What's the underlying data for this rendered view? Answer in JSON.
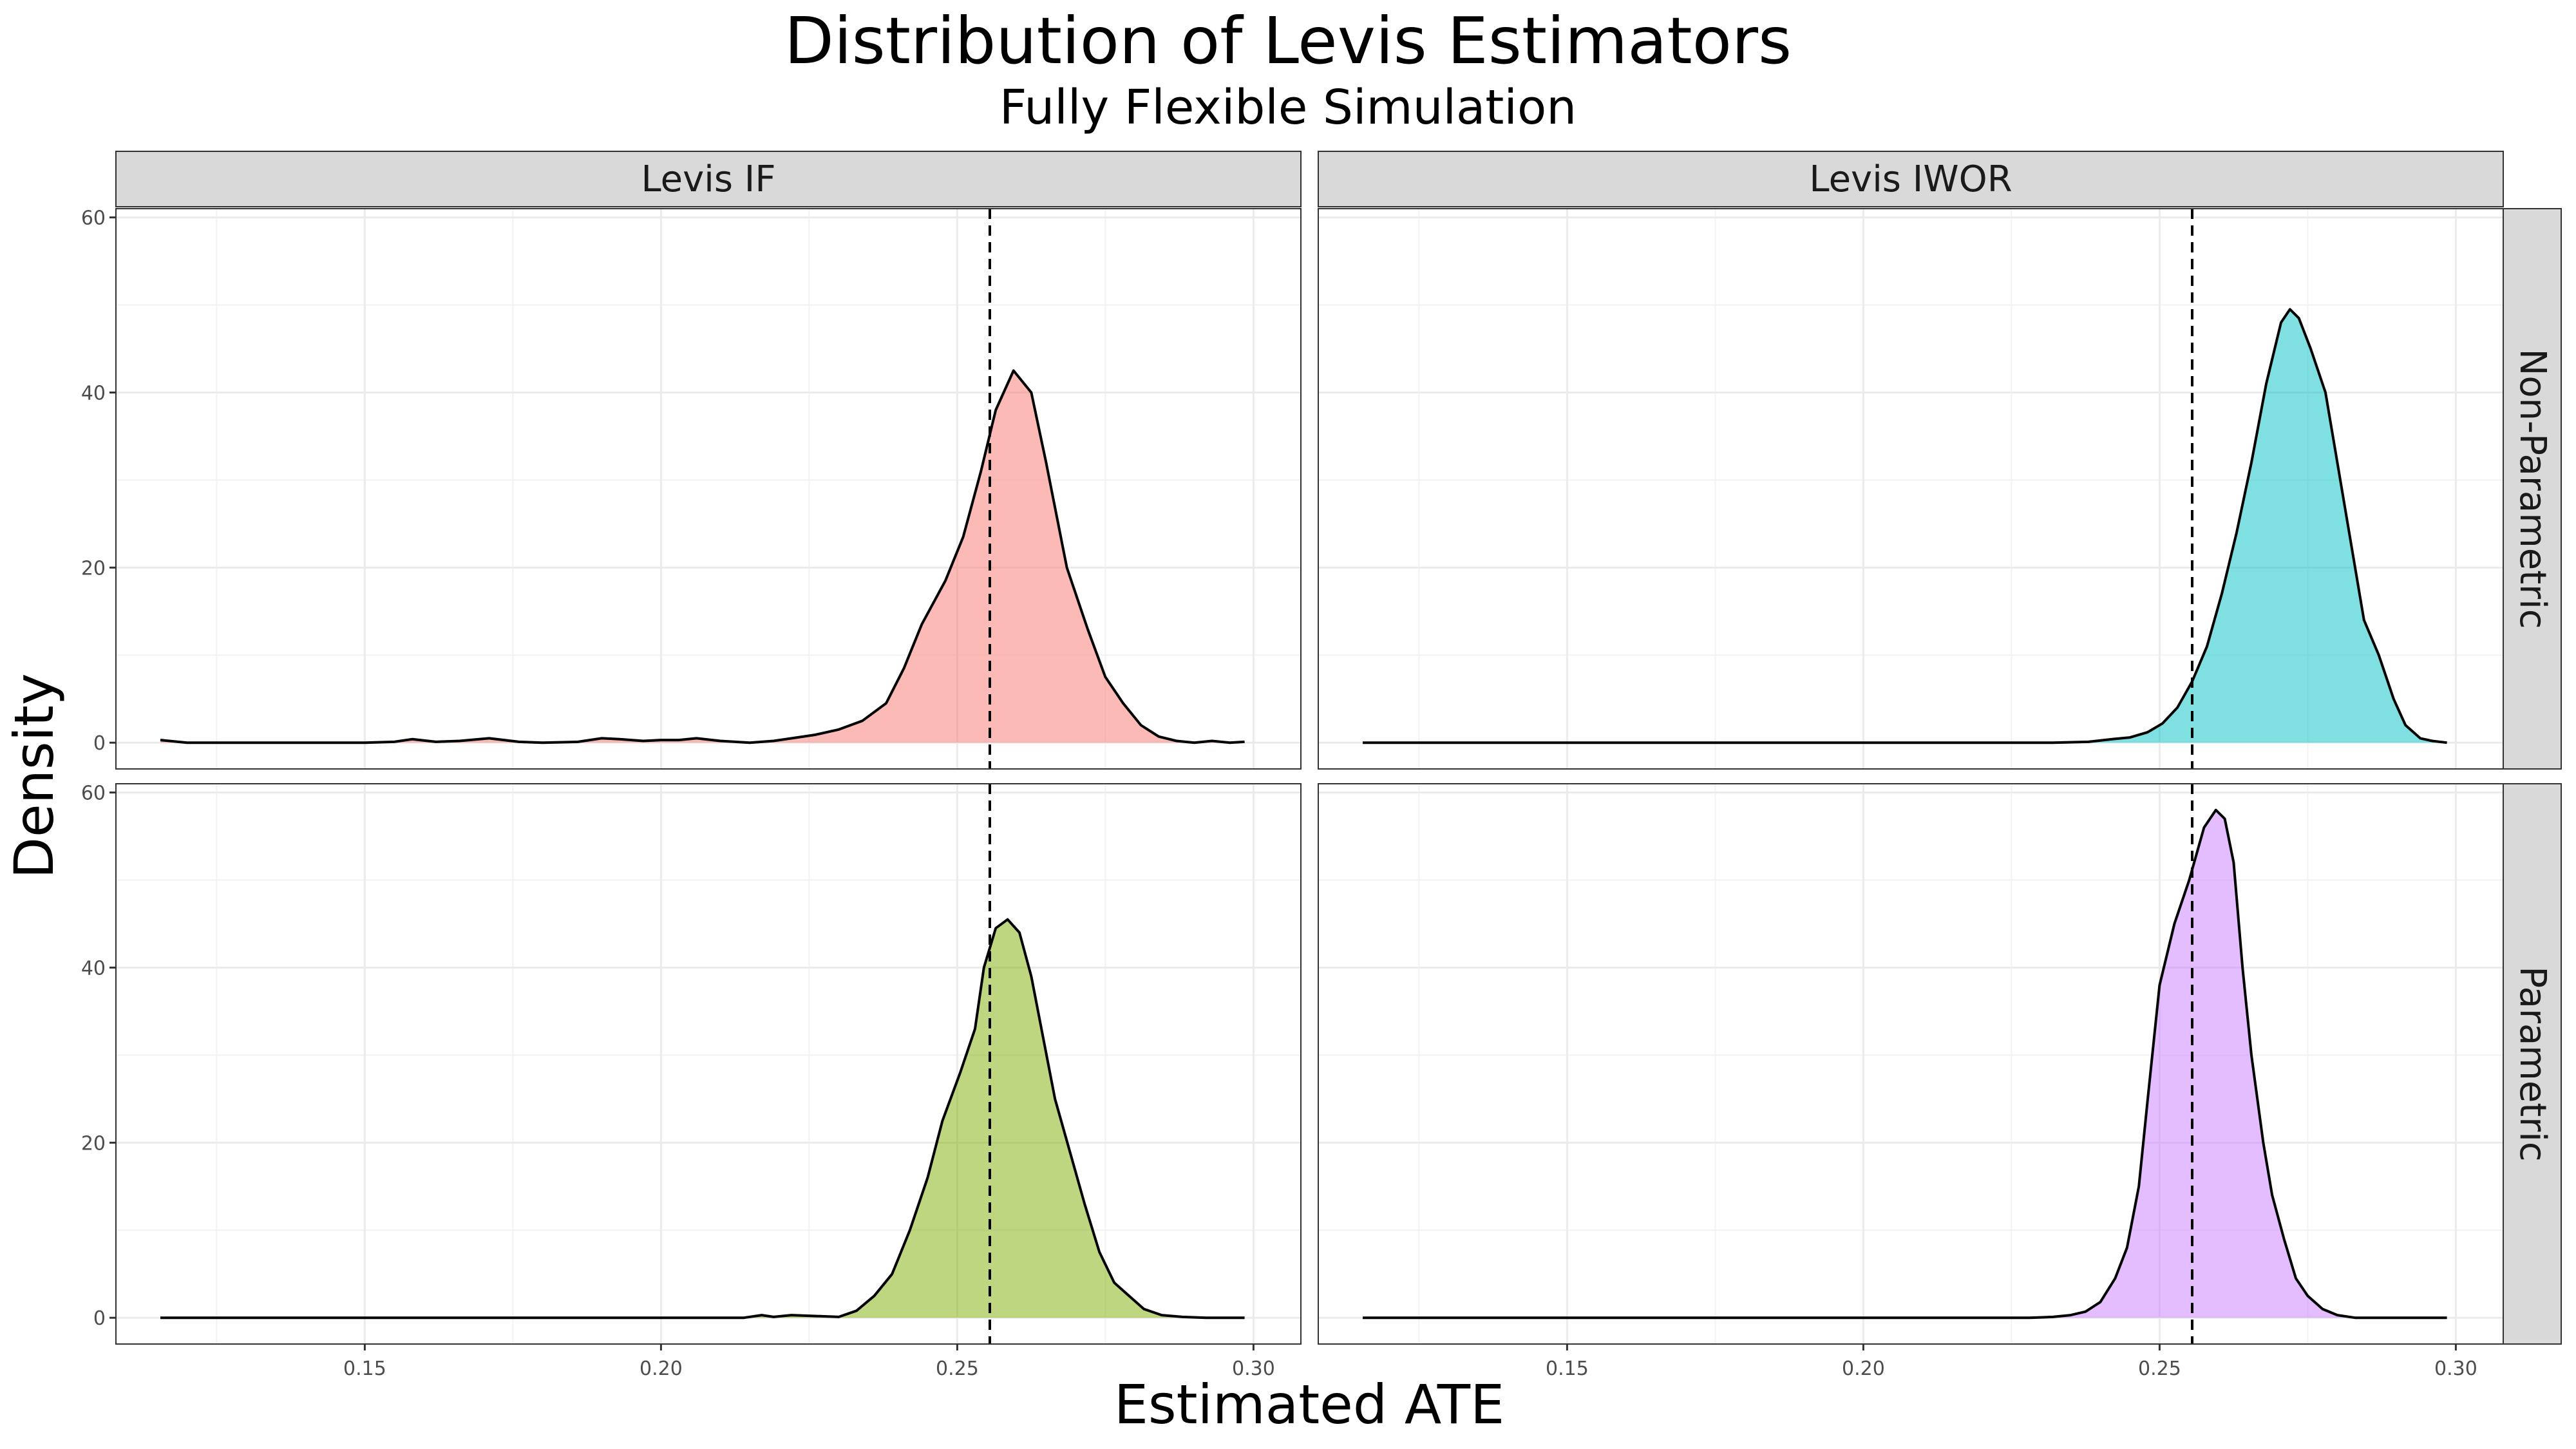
{
  "chart_data": {
    "type": "area",
    "title": "Distribution of Levis Estimators",
    "subtitle": "Fully Flexible Simulation",
    "xlabel": "Estimated ATE",
    "ylabel": "Density",
    "xlim": [
      0.108,
      0.308
    ],
    "ylim": [
      -3,
      61
    ],
    "x_ticks": [
      0.15,
      0.2,
      0.25,
      0.3
    ],
    "x_tick_labels": [
      "0.15",
      "0.20",
      "0.25",
      "0.30"
    ],
    "y_ticks": [
      0,
      20,
      40,
      60
    ],
    "y_tick_labels": [
      "0",
      "20",
      "40",
      "60"
    ],
    "reference_line": {
      "x": 0.2555,
      "style": "dashed"
    },
    "grid": true,
    "columns": [
      "Levis IF",
      "Levis IWOR"
    ],
    "rows": [
      "Non-Parametric",
      "Parametric"
    ],
    "panels": [
      {
        "column": "Levis IF",
        "row": "Non-Parametric",
        "fill": "#F8766D",
        "points": [
          [
            0.1155,
            0.3
          ],
          [
            0.12,
            0
          ],
          [
            0.13,
            0
          ],
          [
            0.14,
            0
          ],
          [
            0.15,
            0
          ],
          [
            0.155,
            0.1
          ],
          [
            0.158,
            0.4
          ],
          [
            0.162,
            0.1
          ],
          [
            0.166,
            0.2
          ],
          [
            0.171,
            0.5
          ],
          [
            0.176,
            0.1
          ],
          [
            0.18,
            0
          ],
          [
            0.186,
            0.1
          ],
          [
            0.19,
            0.5
          ],
          [
            0.193,
            0.4
          ],
          [
            0.197,
            0.2
          ],
          [
            0.2,
            0.3
          ],
          [
            0.203,
            0.3
          ],
          [
            0.206,
            0.5
          ],
          [
            0.21,
            0.2
          ],
          [
            0.215,
            0
          ],
          [
            0.219,
            0.2
          ],
          [
            0.223,
            0.6
          ],
          [
            0.226,
            0.9
          ],
          [
            0.23,
            1.5
          ],
          [
            0.234,
            2.5
          ],
          [
            0.238,
            4.5
          ],
          [
            0.241,
            8.5
          ],
          [
            0.244,
            13.5
          ],
          [
            0.248,
            18.5
          ],
          [
            0.251,
            23.5
          ],
          [
            0.254,
            31
          ],
          [
            0.2565,
            38
          ],
          [
            0.2595,
            42.5
          ],
          [
            0.2625,
            40
          ],
          [
            0.265,
            32
          ],
          [
            0.2685,
            20
          ],
          [
            0.272,
            13
          ],
          [
            0.275,
            7.5
          ],
          [
            0.278,
            4.5
          ],
          [
            0.281,
            2
          ],
          [
            0.284,
            0.7
          ],
          [
            0.287,
            0.2
          ],
          [
            0.29,
            0
          ],
          [
            0.293,
            0.2
          ],
          [
            0.296,
            0
          ],
          [
            0.2985,
            0.1
          ]
        ]
      },
      {
        "column": "Levis IWOR",
        "row": "Non-Parametric",
        "fill": "#00BFC4",
        "points": [
          [
            0.1155,
            0
          ],
          [
            0.15,
            0
          ],
          [
            0.2,
            0
          ],
          [
            0.232,
            0
          ],
          [
            0.238,
            0.1
          ],
          [
            0.242,
            0.4
          ],
          [
            0.245,
            0.6
          ],
          [
            0.248,
            1.2
          ],
          [
            0.2505,
            2.2
          ],
          [
            0.253,
            4
          ],
          [
            0.2555,
            7
          ],
          [
            0.258,
            11
          ],
          [
            0.2605,
            17
          ],
          [
            0.263,
            24
          ],
          [
            0.2655,
            32
          ],
          [
            0.268,
            41
          ],
          [
            0.2705,
            48
          ],
          [
            0.272,
            49.5
          ],
          [
            0.2735,
            48.5
          ],
          [
            0.2755,
            45
          ],
          [
            0.278,
            40
          ],
          [
            0.28,
            32
          ],
          [
            0.2825,
            22
          ],
          [
            0.2845,
            14
          ],
          [
            0.287,
            10
          ],
          [
            0.2895,
            5
          ],
          [
            0.2915,
            2
          ],
          [
            0.294,
            0.5
          ],
          [
            0.296,
            0.2
          ],
          [
            0.2985,
            0
          ]
        ]
      },
      {
        "column": "Levis IF",
        "row": "Parametric",
        "fill": "#7CAE00",
        "points": [
          [
            0.1155,
            0
          ],
          [
            0.15,
            0
          ],
          [
            0.2,
            0
          ],
          [
            0.214,
            0
          ],
          [
            0.217,
            0.3
          ],
          [
            0.219,
            0.1
          ],
          [
            0.222,
            0.3
          ],
          [
            0.226,
            0.2
          ],
          [
            0.23,
            0.1
          ],
          [
            0.233,
            0.8
          ],
          [
            0.236,
            2.5
          ],
          [
            0.239,
            5
          ],
          [
            0.242,
            10
          ],
          [
            0.245,
            16
          ],
          [
            0.2475,
            22.5
          ],
          [
            0.2505,
            28
          ],
          [
            0.253,
            33
          ],
          [
            0.2545,
            40
          ],
          [
            0.2565,
            44.5
          ],
          [
            0.2585,
            45.5
          ],
          [
            0.2605,
            44
          ],
          [
            0.2625,
            39
          ],
          [
            0.2645,
            32
          ],
          [
            0.2665,
            25
          ],
          [
            0.269,
            19
          ],
          [
            0.2715,
            13
          ],
          [
            0.274,
            7.5
          ],
          [
            0.2765,
            4
          ],
          [
            0.279,
            2.5
          ],
          [
            0.2815,
            1
          ],
          [
            0.2845,
            0.3
          ],
          [
            0.288,
            0.1
          ],
          [
            0.292,
            0
          ],
          [
            0.2985,
            0
          ]
        ]
      },
      {
        "column": "Levis IWOR",
        "row": "Parametric",
        "fill": "#C77CFF",
        "points": [
          [
            0.1155,
            0
          ],
          [
            0.15,
            0
          ],
          [
            0.2,
            0
          ],
          [
            0.228,
            0
          ],
          [
            0.232,
            0.1
          ],
          [
            0.235,
            0.3
          ],
          [
            0.2375,
            0.7
          ],
          [
            0.24,
            1.8
          ],
          [
            0.2425,
            4.5
          ],
          [
            0.2445,
            8
          ],
          [
            0.2465,
            15
          ],
          [
            0.248,
            25
          ],
          [
            0.25,
            38
          ],
          [
            0.2525,
            45
          ],
          [
            0.255,
            50
          ],
          [
            0.2575,
            56
          ],
          [
            0.2595,
            58
          ],
          [
            0.261,
            57
          ],
          [
            0.2625,
            52
          ],
          [
            0.264,
            40
          ],
          [
            0.2655,
            30
          ],
          [
            0.2675,
            20
          ],
          [
            0.269,
            14
          ],
          [
            0.271,
            9
          ],
          [
            0.273,
            4.5
          ],
          [
            0.275,
            2.5
          ],
          [
            0.2775,
            1
          ],
          [
            0.28,
            0.3
          ],
          [
            0.283,
            0
          ],
          [
            0.2985,
            0
          ]
        ]
      }
    ]
  }
}
